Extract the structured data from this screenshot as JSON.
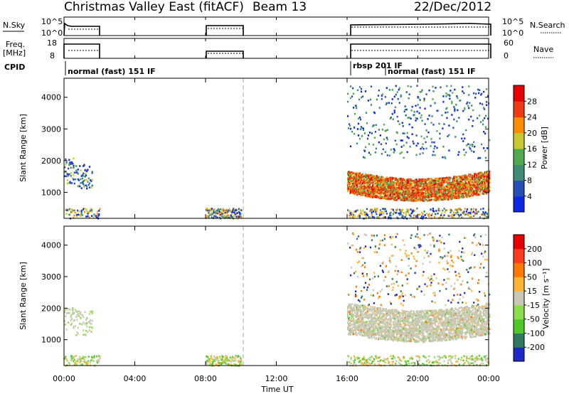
{
  "header": {
    "title": "Christmas Valley East (fitACF)",
    "beam": "Beam 13",
    "date": "22/Dec/2012"
  },
  "strip_labels": {
    "nsky": "N.Sky",
    "freq_line1": "Freq.",
    "freq_line2": "[MHz]",
    "cpid": "CPID",
    "nsearch": "N.Search",
    "nave": "Nave"
  },
  "nsky_ticks": [
    "10^5",
    "10^0"
  ],
  "nsearch_ticks": [
    "10^5",
    "10^0"
  ],
  "freq_ticks": [
    "18",
    "8"
  ],
  "nave_ticks": [
    "60",
    "0"
  ],
  "cpid_segments": [
    {
      "label": "normal (fast) 151 IF",
      "start_hour": 0
    },
    {
      "label": "rbsp 201 IF",
      "start_hour": 16
    },
    {
      "label": "normal (fast) 151 IF",
      "start_hour": 17.8
    }
  ],
  "chart_data": [
    {
      "type": "heatmap",
      "name": "power-panel",
      "ylabel": "Slant Range [km]",
      "xlabel": "",
      "x_ticks": [
        "00:00",
        "04:00",
        "08:00",
        "12:00",
        "16:00",
        "20:00",
        "00:00"
      ],
      "x_tick_hours": [
        0,
        4,
        8,
        12,
        16,
        20,
        24
      ],
      "y_ticks": [
        1000,
        2000,
        3000,
        4000
      ],
      "ylim": [
        180,
        4600
      ],
      "xlim_hours": [
        0,
        24
      ],
      "colorbar_label": "Power [dB]",
      "colorbar_ticks": [
        "4",
        "8",
        "12",
        "16",
        "20",
        "24",
        "28"
      ],
      "colorbar_colors": [
        "#0a28e6",
        "#2850b4",
        "#3c8c78",
        "#50aa50",
        "#c8c832",
        "#ff8c00",
        "#f03c14",
        "#e60000"
      ],
      "data_windows_hours": [
        [
          0,
          2
        ],
        [
          8,
          10
        ],
        [
          16,
          24
        ]
      ],
      "dashed_line_hour": 10,
      "dominant_echo_band_km": [
        1000,
        1700
      ]
    },
    {
      "type": "heatmap",
      "name": "velocity-panel",
      "ylabel": "Slant Range [km]",
      "xlabel": "Time UT",
      "x_ticks": [
        "00:00",
        "04:00",
        "08:00",
        "12:00",
        "16:00",
        "20:00",
        "00:00"
      ],
      "x_tick_hours": [
        0,
        4,
        8,
        12,
        16,
        20,
        24
      ],
      "y_ticks": [
        1000,
        2000,
        3000,
        4000
      ],
      "ylim": [
        180,
        4600
      ],
      "xlim_hours": [
        0,
        24
      ],
      "colorbar_label": "Velocity [m s⁻¹]",
      "colorbar_ticks": [
        "200",
        "100",
        "50",
        "15",
        "-15",
        "-50",
        "-100",
        "-200"
      ],
      "colorbar_colors": [
        "#1e28c8",
        "#2f7a60",
        "#50c828",
        "#8cdc50",
        "#c8c8b4",
        "#ffb432",
        "#ff7800",
        "#ff3c1e",
        "#e60000"
      ],
      "data_windows_hours": [
        [
          0,
          2
        ],
        [
          8,
          10
        ],
        [
          16,
          24
        ]
      ],
      "dashed_line_hour": 10,
      "dominant_echo_band_km": [
        1200,
        2200
      ]
    }
  ]
}
